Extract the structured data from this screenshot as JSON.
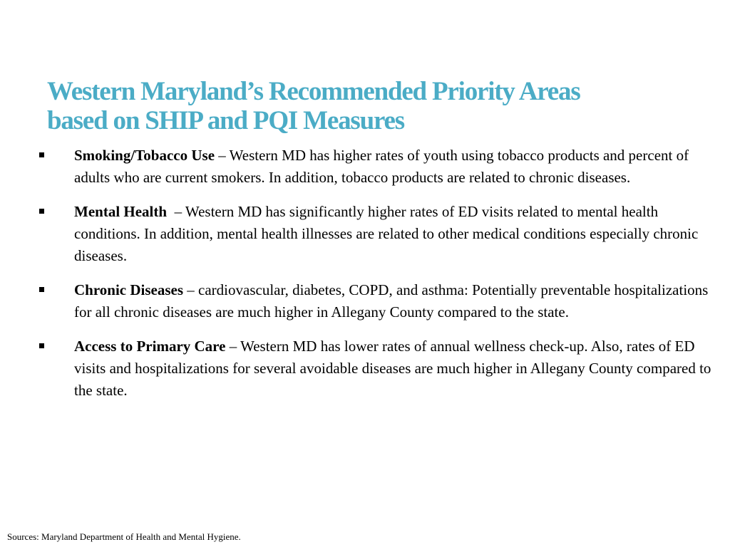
{
  "slide": {
    "title_line1": "Western Maryland’s Recommended Priority Areas",
    "title_line2": "based on SHIP and PQI Measures",
    "title_color": "#4bacc6",
    "bullet_icon": "square-bullet-icon",
    "bullets": [
      {
        "term": "Smoking/Tobacco Use",
        "text": " – Western MD has higher rates of youth using tobacco products and percent of adults who are current smokers. In addition, tobacco products are related to chronic diseases."
      },
      {
        "term": "Mental Health",
        "text": "  – Western MD has significantly higher rates of ED visits related to mental health conditions. In addition, mental health illnesses are related to other medical conditions especially chronic diseases."
      },
      {
        "term": "Chronic Diseases",
        "text": " – cardiovascular, diabetes, COPD, and asthma:  Potentially preventable hospitalizations for all chronic diseases are much higher in Allegany County compared to the state."
      },
      {
        "term": "Access to Primary Care",
        "text": " – Western MD has lower rates of annual wellness check-up. Also, rates of ED visits and hospitalizations for several avoidable diseases are much higher in Allegany County compared to the state."
      }
    ],
    "sources": "Sources: Maryland Department of Health and Mental Hygiene."
  }
}
